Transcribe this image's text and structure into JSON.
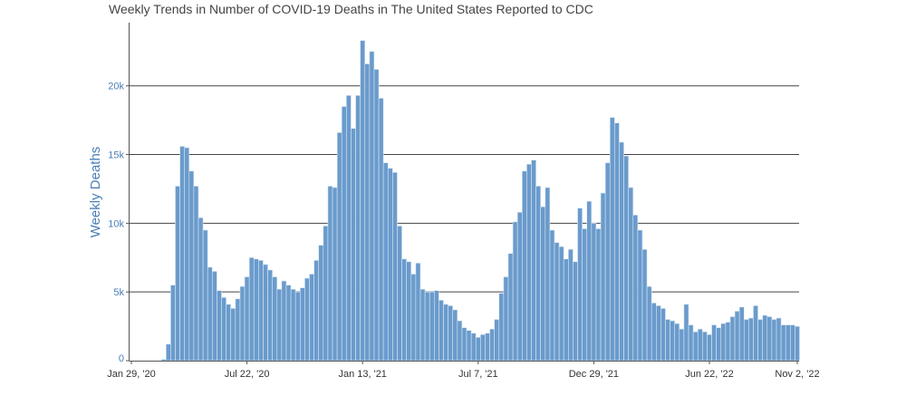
{
  "chart_data": {
    "type": "bar",
    "title": "Weekly Trends in Number of COVID-19 Deaths in The United States Reported to CDC",
    "xlabel": "",
    "ylabel": "Weekly Deaths",
    "x_start": "Jan 29, '20",
    "x_interval": "weekly",
    "x_tick_labels": [
      "Jan 29, '20",
      "Jul 22, '20",
      "Jan 13, '21",
      "Jul 7, '21",
      "Dec 29, '21",
      "Jun 22, '22",
      "Nov 2, '22"
    ],
    "x_tick_weeks": [
      0,
      25,
      50,
      75,
      100,
      125,
      144
    ],
    "y_ticks": [
      0,
      5000,
      10000,
      15000,
      20000
    ],
    "y_tick_labels": [
      "0",
      "5k",
      "10k",
      "15k",
      "20k"
    ],
    "ylim": [
      0,
      24600
    ],
    "grid": "horizontal",
    "bar_color": "#6a9bcc",
    "values": [
      0,
      0,
      0,
      0,
      0,
      0,
      0,
      100,
      1200,
      5500,
      12700,
      15600,
      15500,
      13800,
      12700,
      10400,
      9500,
      6800,
      6500,
      5100,
      4600,
      4100,
      3800,
      4500,
      5400,
      6100,
      7500,
      7400,
      7300,
      7000,
      6600,
      6100,
      5200,
      5800,
      5500,
      5200,
      5000,
      5300,
      6000,
      6300,
      7300,
      8400,
      9800,
      12700,
      12600,
      16600,
      18500,
      19300,
      16900,
      19300,
      23300,
      21600,
      22500,
      21200,
      19100,
      14400,
      14000,
      13700,
      9800,
      7400,
      7200,
      6300,
      7100,
      5200,
      5000,
      5000,
      5100,
      4400,
      4100,
      4000,
      3700,
      2900,
      2400,
      2200,
      2000,
      1700,
      1900,
      2000,
      2300,
      3000,
      4900,
      6100,
      7800,
      10100,
      10800,
      13800,
      14300,
      14600,
      12700,
      11200,
      12600,
      9500,
      8600,
      8300,
      7400,
      8100,
      7200,
      11100,
      9600,
      11600,
      10000,
      9600,
      12200,
      14400,
      17700,
      17300,
      15900,
      14900,
      12600,
      10600,
      9500,
      8100,
      5400,
      4200,
      4000,
      3800,
      3000,
      2900,
      2700,
      2300,
      4100,
      2600,
      2100,
      2300,
      2100,
      1900,
      2600,
      2400,
      2700,
      2800,
      3200,
      3600,
      3900,
      3000,
      3100,
      4000,
      3000,
      3300,
      3200,
      3000,
      3100,
      2600,
      2600,
      2600,
      2500
    ]
  }
}
